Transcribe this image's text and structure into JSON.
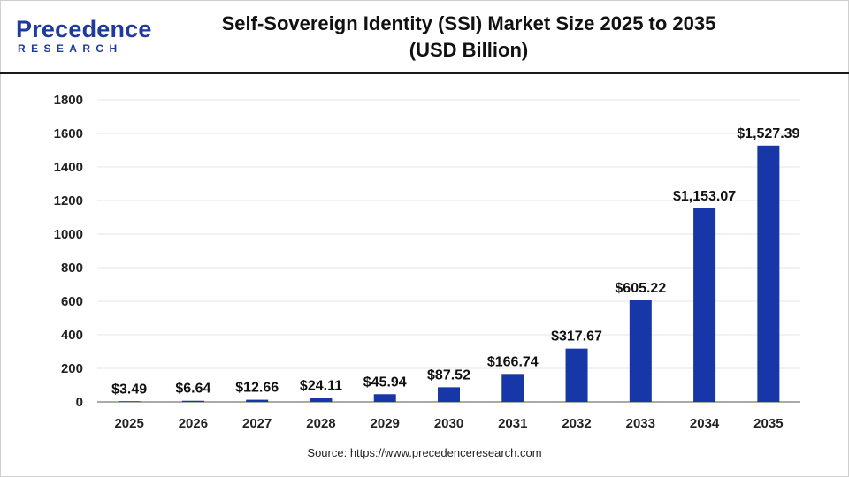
{
  "logo": {
    "word": "Precedence",
    "sub": "RESEARCH"
  },
  "header": {
    "title_line1": "Self-Sovereign Identity (SSI) Market Size 2025 to 2035",
    "title_line2": "(USD Billion)"
  },
  "source": "Source: https://www.precedenceresearch.com",
  "colors": {
    "bar": "#1736a8",
    "brand": "#1e3a9e",
    "grid": "#e6e6e6",
    "axis": "#555555"
  },
  "chart_data": {
    "type": "bar",
    "title": "Self-Sovereign Identity (SSI) Market Size 2025 to 2035 (USD Billion)",
    "xlabel": "",
    "ylabel": "",
    "ylim": [
      0,
      1800
    ],
    "yticks": [
      0,
      200,
      400,
      600,
      800,
      1000,
      1200,
      1400,
      1600,
      1800
    ],
    "grid": true,
    "categories": [
      "2025",
      "2026",
      "2027",
      "2028",
      "2029",
      "2030",
      "2031",
      "2032",
      "2033",
      "2034",
      "2035"
    ],
    "values": [
      3.49,
      6.64,
      12.66,
      24.11,
      45.94,
      87.52,
      166.74,
      317.67,
      605.22,
      1153.07,
      1527.39
    ],
    "data_labels": [
      "$3.49",
      "$6.64",
      "$12.66",
      "$24.11",
      "$45.94",
      "$87.52",
      "$166.74",
      "$317.67",
      "$605.22",
      "$1,153.07",
      "$1,527.39"
    ]
  }
}
